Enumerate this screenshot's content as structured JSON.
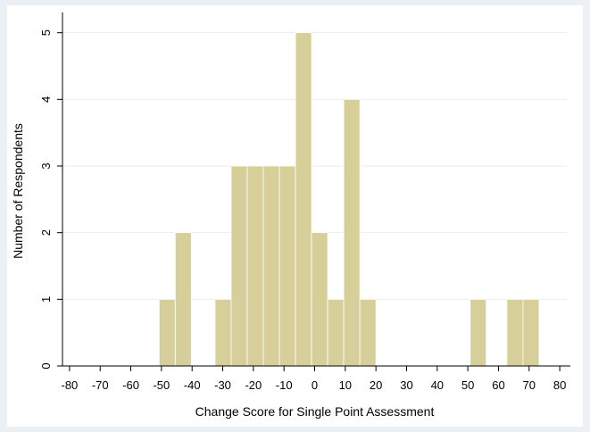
{
  "chart_data": {
    "type": "bar",
    "title": "",
    "xlabel": "Change Score for Single Point Assessment",
    "ylabel": "Number of Respondents",
    "xlim": [
      -82.3,
      82.3
    ],
    "ylim": [
      0,
      5.25
    ],
    "x_ticks": [
      -80,
      -70,
      -60,
      -50,
      -40,
      -30,
      -20,
      -10,
      0,
      10,
      20,
      30,
      40,
      50,
      60,
      70,
      80
    ],
    "y_ticks": [
      0,
      1,
      2,
      3,
      4,
      5
    ],
    "grid": true,
    "bin_width": 5,
    "bars": [
      {
        "x0": -50.75,
        "x1": -45.5,
        "value": 1
      },
      {
        "x0": -45.5,
        "x1": -40.25,
        "value": 2
      },
      {
        "x0": -32.5,
        "x1": -27.25,
        "value": 1
      },
      {
        "x0": -27.25,
        "x1": -22.0,
        "value": 3
      },
      {
        "x0": -22.0,
        "x1": -16.75,
        "value": 3
      },
      {
        "x0": -16.75,
        "x1": -11.5,
        "value": 3
      },
      {
        "x0": -11.5,
        "x1": -6.25,
        "value": 3
      },
      {
        "x0": -6.25,
        "x1": -1.0,
        "value": 5
      },
      {
        "x0": -1.0,
        "x1": 4.25,
        "value": 2
      },
      {
        "x0": 4.25,
        "x1": 9.5,
        "value": 1
      },
      {
        "x0": 9.5,
        "x1": 14.75,
        "value": 4
      },
      {
        "x0": 14.75,
        "x1": 20.0,
        "value": 1
      },
      {
        "x0": 50.75,
        "x1": 56.0,
        "value": 1
      },
      {
        "x0": 62.75,
        "x1": 68.0,
        "value": 1
      },
      {
        "x0": 68.0,
        "x1": 73.25,
        "value": 1
      }
    ],
    "colors": {
      "bar_fill": "#d6cf9a",
      "bar_edge": "#ffffff",
      "grid": "#eeeeee",
      "axis": "#000000"
    }
  }
}
